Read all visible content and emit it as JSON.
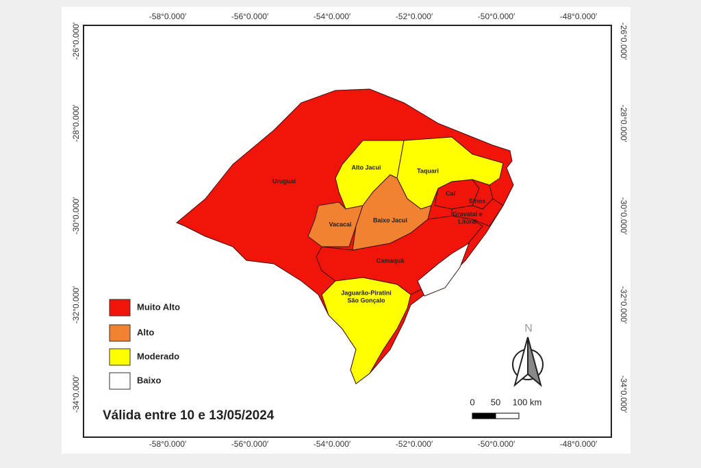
{
  "map": {
    "lon_labels": [
      "-58°0.000′",
      "-56°0.000′",
      "-54°0.000′",
      "-52°0.000′",
      "-50°0.000′",
      "-48°0.000′"
    ],
    "lat_labels": [
      "-26°0.000′",
      "-28°0.000′",
      "-30°0.000′",
      "-32°0.000′",
      "-34°0.000′"
    ],
    "regions": [
      {
        "lines": [
          "Uruguai"
        ]
      },
      {
        "lines": [
          "Alto Jacui"
        ]
      },
      {
        "lines": [
          "Taquari"
        ]
      },
      {
        "lines": [
          "Caí"
        ]
      },
      {
        "lines": [
          "Sinos"
        ]
      },
      {
        "lines": [
          "Gravataí e",
          "Litoral"
        ]
      },
      {
        "lines": [
          "Vacacai"
        ]
      },
      {
        "lines": [
          "Baixo Jacui"
        ]
      },
      {
        "lines": [
          "Camaquã"
        ]
      },
      {
        "lines": [
          "Jaguarão-Piratini",
          "São Gonçalo"
        ]
      }
    ],
    "legend": [
      {
        "label": "Muito Alto",
        "color": "#f0140a"
      },
      {
        "label": "Alto",
        "color": "#f08232"
      },
      {
        "label": "Moderado",
        "color": "#ffff00"
      },
      {
        "label": "Baixo",
        "color": "#ffffff"
      }
    ],
    "title": "Válida entre 10 e 13/05/2024",
    "north": "N",
    "scale_labels": [
      "0",
      "50",
      "100 km"
    ]
  }
}
